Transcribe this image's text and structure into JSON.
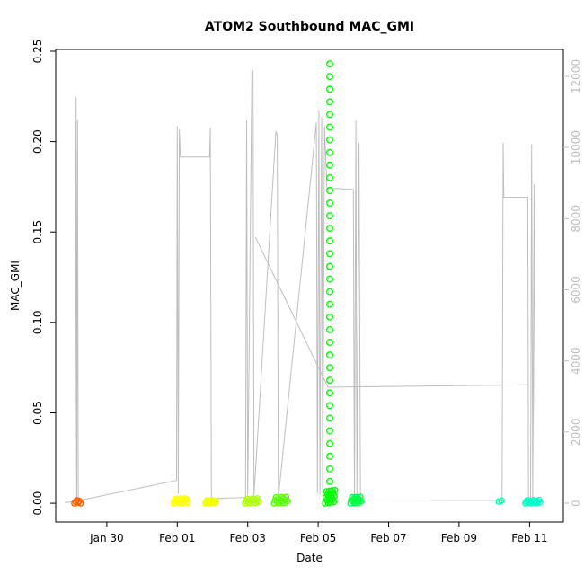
{
  "chart_data": {
    "type": "scatter",
    "title": "ATOM2 Southbound MAC_GMI",
    "xlabel": "Date",
    "ylabel": "MAC_GMI",
    "x_unit": "days (Jan 30 = 1)",
    "x_domain": [
      -0.45,
      13.96
    ],
    "y_left_domain": [
      -0.0104,
      0.251
    ],
    "y_right_domain": [
      -530,
      12757
    ],
    "x_ticks": [
      {
        "x": 1,
        "label": "Jan 30"
      },
      {
        "x": 3,
        "label": "Feb 01"
      },
      {
        "x": 5,
        "label": "Feb 03"
      },
      {
        "x": 7,
        "label": "Feb 05"
      },
      {
        "x": 9,
        "label": "Feb 07"
      },
      {
        "x": 11,
        "label": "Feb 09"
      },
      {
        "x": 13,
        "label": "Feb 11"
      }
    ],
    "y_left_ticks": [
      {
        "y": 0,
        "label": "0.00"
      },
      {
        "y": 0.05,
        "label": "0.05"
      },
      {
        "y": 0.1,
        "label": "0.10"
      },
      {
        "y": 0.15,
        "label": "0.15"
      },
      {
        "y": 0.2,
        "label": "0.20"
      },
      {
        "y": 0.25,
        "label": "0.25"
      }
    ],
    "y_right_ticks": [
      {
        "y": 0,
        "label": "0"
      },
      {
        "y": 2000,
        "label": "2000"
      },
      {
        "y": 4000,
        "label": "4000"
      },
      {
        "y": 6000,
        "label": "6000"
      },
      {
        "y": 8000,
        "label": "8000"
      },
      {
        "y": 10000,
        "label": "10000"
      },
      {
        "y": 12000,
        "label": "12000"
      }
    ],
    "line_color": "#BEBEBE",
    "right_axis_color": "#BEBEBE",
    "box_color": "#000000",
    "gray_line_segments_right_axis": [
      [
        [
          -0.2,
          20
        ],
        [
          0.1,
          40
        ],
        [
          0.13,
          11420
        ],
        [
          0.15,
          120
        ],
        [
          0.17,
          10760
        ],
        [
          0.19,
          70
        ],
        [
          2.98,
          640
        ],
        [
          3.0,
          10600
        ],
        [
          3.03,
          260
        ],
        [
          3.06,
          10500
        ],
        [
          3.09,
          9730
        ],
        [
          3.92,
          9730
        ],
        [
          3.94,
          10550
        ],
        [
          3.97,
          130
        ],
        [
          4.94,
          160
        ],
        [
          4.97,
          10760
        ],
        [
          5.0,
          230
        ],
        [
          5.12,
          12190
        ],
        [
          5.15,
          12140
        ],
        [
          5.18,
          210
        ],
        [
          5.8,
          10450
        ],
        [
          5.84,
          10340
        ],
        [
          5.87,
          140
        ],
        [
          6.95,
          10700
        ],
        [
          6.98,
          280
        ],
        [
          7.02,
          11060
        ],
        [
          7.05,
          240
        ],
        [
          7.1,
          10850
        ],
        [
          7.13,
          200
        ],
        [
          7.18,
          10600
        ],
        [
          7.25,
          8860
        ],
        [
          8.0,
          8820
        ],
        [
          8.03,
          140
        ],
        [
          8.07,
          10760
        ],
        [
          8.1,
          160
        ],
        [
          8.16,
          10140
        ],
        [
          8.2,
          90
        ],
        [
          12.22,
          80
        ],
        [
          12.25,
          10140
        ],
        [
          12.27,
          8600
        ],
        [
          12.95,
          8600
        ],
        [
          12.97,
          140
        ],
        [
          13.03,
          90
        ],
        [
          13.06,
          10090
        ],
        [
          13.09,
          160
        ],
        [
          13.13,
          8960
        ],
        [
          13.16,
          100
        ],
        [
          13.3,
          40
        ]
      ],
      [
        [
          5.22,
          7475
        ],
        [
          7.28,
          3260
        ],
        [
          12.96,
          3330
        ]
      ]
    ],
    "point_clusters": [
      {
        "name": "jan29",
        "color": "#FF6000",
        "x0": 0.08,
        "x1": 0.26,
        "n": 6,
        "y0": 0.0,
        "y1": 0.002
      },
      {
        "name": "feb01",
        "color": "#FFFF00",
        "x0": 2.9,
        "x1": 3.3,
        "n": 16,
        "y0": 0.0,
        "y1": 0.003
      },
      {
        "name": "feb02",
        "color": "#F2FF00",
        "x0": 3.8,
        "x1": 4.1,
        "n": 12,
        "y0": 0.0,
        "y1": 0.002
      },
      {
        "name": "feb03",
        "color": "#AAFF00",
        "x0": 4.93,
        "x1": 5.3,
        "n": 14,
        "y0": 0.0,
        "y1": 0.003
      },
      {
        "name": "feb04",
        "color": "#55FF00",
        "x0": 5.75,
        "x1": 6.12,
        "n": 14,
        "y0": 0.0,
        "y1": 0.004
      },
      {
        "name": "feb05-base",
        "color": "#00FF00",
        "x0": 7.2,
        "x1": 7.48,
        "n": 18,
        "y0": 0.0,
        "y1": 0.008
      },
      {
        "name": "feb06",
        "color": "#00FF40",
        "x0": 7.92,
        "x1": 8.22,
        "n": 14,
        "y0": 0.0,
        "y1": 0.004
      },
      {
        "name": "feb10",
        "color": "#00FFAA",
        "x0": 12.13,
        "x1": 12.2,
        "n": 2,
        "y0": 0.001,
        "y1": 0.002
      },
      {
        "name": "feb11",
        "color": "#00FFC8",
        "x0": 12.88,
        "x1": 13.3,
        "n": 14,
        "y0": 0.0,
        "y1": 0.002
      }
    ],
    "feb05_column": {
      "x": 7.33,
      "color": "#00FF00",
      "y_values": [
        0.243,
        0.236,
        0.229,
        0.222,
        0.215,
        0.208,
        0.201,
        0.194,
        0.187,
        0.18,
        0.173,
        0.166,
        0.159,
        0.152,
        0.145,
        0.138,
        0.131,
        0.124,
        0.117,
        0.11,
        0.103,
        0.096,
        0.089,
        0.082,
        0.075,
        0.068,
        0.061,
        0.054,
        0.047,
        0.04,
        0.033,
        0.026,
        0.019,
        0.012,
        0.005
      ]
    }
  }
}
